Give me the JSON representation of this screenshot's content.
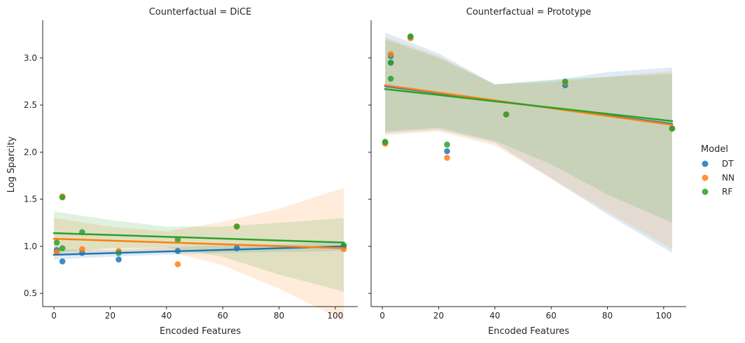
{
  "chart_data": {
    "type": "scatter",
    "ylabel": "Log Sparcity",
    "xlim": [
      -4,
      108
    ],
    "ylim": [
      0.36,
      3.4
    ],
    "xticks": [
      0,
      20,
      40,
      60,
      80,
      100
    ],
    "yticks": [
      0.5,
      1.0,
      1.5,
      2.0,
      2.5,
      3.0
    ],
    "ytick_labels": [
      "0.5",
      "1.0",
      "1.5",
      "2.0",
      "2.5",
      "3.0"
    ],
    "grid": false,
    "legend": {
      "title": "Model",
      "placement": "right",
      "entries": [
        {
          "name": "DT",
          "color": "#1f77b4"
        },
        {
          "name": "NN",
          "color": "#ff7f0e"
        },
        {
          "name": "RF",
          "color": "#2ca02c"
        }
      ]
    },
    "panels": [
      {
        "title": "Counterfactual = DiCE",
        "xlabel": "Encoded Features",
        "series": [
          {
            "name": "DT",
            "color": "#1f77b4",
            "points": [
              [
                1,
                0.96
              ],
              [
                3,
                0.84
              ],
              [
                10,
                0.93
              ],
              [
                23,
                0.86
              ],
              [
                44,
                0.95
              ],
              [
                65,
                0.98
              ],
              [
                103,
                1.0
              ]
            ],
            "fit": [
              [
                0,
                0.91
              ],
              [
                103,
                1.0
              ]
            ],
            "band_upper": [
              [
                0,
                0.97
              ],
              [
                20,
                0.96
              ],
              [
                40,
                0.99
              ],
              [
                60,
                1.01
              ],
              [
                80,
                1.02
              ],
              [
                103,
                1.05
              ]
            ],
            "band_lower": [
              [
                0,
                0.86
              ],
              [
                20,
                0.89
              ],
              [
                40,
                0.91
              ],
              [
                60,
                0.93
              ],
              [
                80,
                0.94
              ],
              [
                103,
                0.95
              ]
            ]
          },
          {
            "name": "NN",
            "color": "#ff7f0e",
            "points": [
              [
                1,
                0.94
              ],
              [
                3,
                1.53
              ],
              [
                10,
                0.97
              ],
              [
                23,
                0.95
              ],
              [
                44,
                0.81
              ],
              [
                65,
                1.21
              ],
              [
                103,
                0.97
              ]
            ],
            "fit": [
              [
                0,
                1.08
              ],
              [
                103,
                0.98
              ]
            ],
            "band_upper": [
              [
                0,
                1.3
              ],
              [
                20,
                1.21
              ],
              [
                40,
                1.16
              ],
              [
                60,
                1.26
              ],
              [
                80,
                1.4
              ],
              [
                103,
                1.62
              ]
            ],
            "band_lower": [
              [
                0,
                0.92
              ],
              [
                20,
                0.94
              ],
              [
                40,
                0.95
              ],
              [
                60,
                0.8
              ],
              [
                80,
                0.55
              ],
              [
                103,
                0.21
              ]
            ]
          },
          {
            "name": "RF",
            "color": "#2ca02c",
            "points": [
              [
                1,
                1.04
              ],
              [
                3,
                1.52
              ],
              [
                3,
                0.98
              ],
              [
                10,
                1.15
              ],
              [
                23,
                0.93
              ],
              [
                44,
                1.07
              ],
              [
                65,
                1.21
              ],
              [
                103,
                1.01
              ]
            ],
            "fit": [
              [
                0,
                1.14
              ],
              [
                103,
                1.04
              ]
            ],
            "band_upper": [
              [
                0,
                1.37
              ],
              [
                20,
                1.28
              ],
              [
                40,
                1.21
              ],
              [
                60,
                1.21
              ],
              [
                80,
                1.25
              ],
              [
                103,
                1.3
              ]
            ],
            "band_lower": [
              [
                0,
                0.93
              ],
              [
                20,
                0.98
              ],
              [
                40,
                0.99
              ],
              [
                60,
                0.89
              ],
              [
                80,
                0.7
              ],
              [
                103,
                0.52
              ]
            ]
          }
        ]
      },
      {
        "title": "Counterfactual = Prototype",
        "xlabel": "Encoded Features",
        "series": [
          {
            "name": "DT",
            "color": "#1f77b4",
            "points": [
              [
                1,
                2.1
              ],
              [
                3,
                3.02
              ],
              [
                3,
                2.95
              ],
              [
                10,
                3.22
              ],
              [
                23,
                2.01
              ],
              [
                44,
                2.4
              ],
              [
                65,
                2.71
              ],
              [
                103,
                2.25
              ]
            ],
            "fit": [
              [
                1,
                2.7
              ],
              [
                103,
                2.3
              ]
            ],
            "band_upper": [
              [
                1,
                3.27
              ],
              [
                20,
                3.05
              ],
              [
                40,
                2.72
              ],
              [
                60,
                2.76
              ],
              [
                80,
                2.85
              ],
              [
                103,
                2.9
              ]
            ],
            "band_lower": [
              [
                1,
                2.2
              ],
              [
                20,
                2.24
              ],
              [
                40,
                2.1
              ],
              [
                60,
                1.72
              ],
              [
                80,
                1.34
              ],
              [
                103,
                0.93
              ]
            ]
          },
          {
            "name": "NN",
            "color": "#ff7f0e",
            "points": [
              [
                1,
                2.09
              ],
              [
                3,
                3.04
              ],
              [
                10,
                3.21
              ],
              [
                23,
                1.94
              ],
              [
                44,
                2.4
              ],
              [
                65,
                2.74
              ],
              [
                103,
                2.25
              ]
            ],
            "fit": [
              [
                1,
                2.71
              ],
              [
                103,
                2.29
              ]
            ],
            "band_upper": [
              [
                1,
                3.22
              ],
              [
                20,
                3.02
              ],
              [
                40,
                2.72
              ],
              [
                60,
                2.74
              ],
              [
                80,
                2.8
              ],
              [
                103,
                2.86
              ]
            ],
            "band_lower": [
              [
                1,
                2.18
              ],
              [
                20,
                2.22
              ],
              [
                40,
                2.07
              ],
              [
                60,
                1.72
              ],
              [
                80,
                1.37
              ],
              [
                103,
                0.97
              ]
            ]
          },
          {
            "name": "RF",
            "color": "#2ca02c",
            "points": [
              [
                1,
                2.11
              ],
              [
                3,
                2.78
              ],
              [
                3,
                2.95
              ],
              [
                10,
                3.23
              ],
              [
                23,
                2.08
              ],
              [
                44,
                2.4
              ],
              [
                65,
                2.75
              ],
              [
                103,
                2.25
              ]
            ],
            "fit": [
              [
                1,
                2.67
              ],
              [
                103,
                2.33
              ]
            ],
            "band_upper": [
              [
                1,
                3.2
              ],
              [
                20,
                3.0
              ],
              [
                40,
                2.72
              ],
              [
                60,
                2.77
              ],
              [
                80,
                2.8
              ],
              [
                103,
                2.83
              ]
            ],
            "band_lower": [
              [
                1,
                2.22
              ],
              [
                20,
                2.26
              ],
              [
                40,
                2.12
              ],
              [
                60,
                1.87
              ],
              [
                80,
                1.55
              ],
              [
                103,
                1.25
              ]
            ]
          }
        ]
      }
    ]
  }
}
